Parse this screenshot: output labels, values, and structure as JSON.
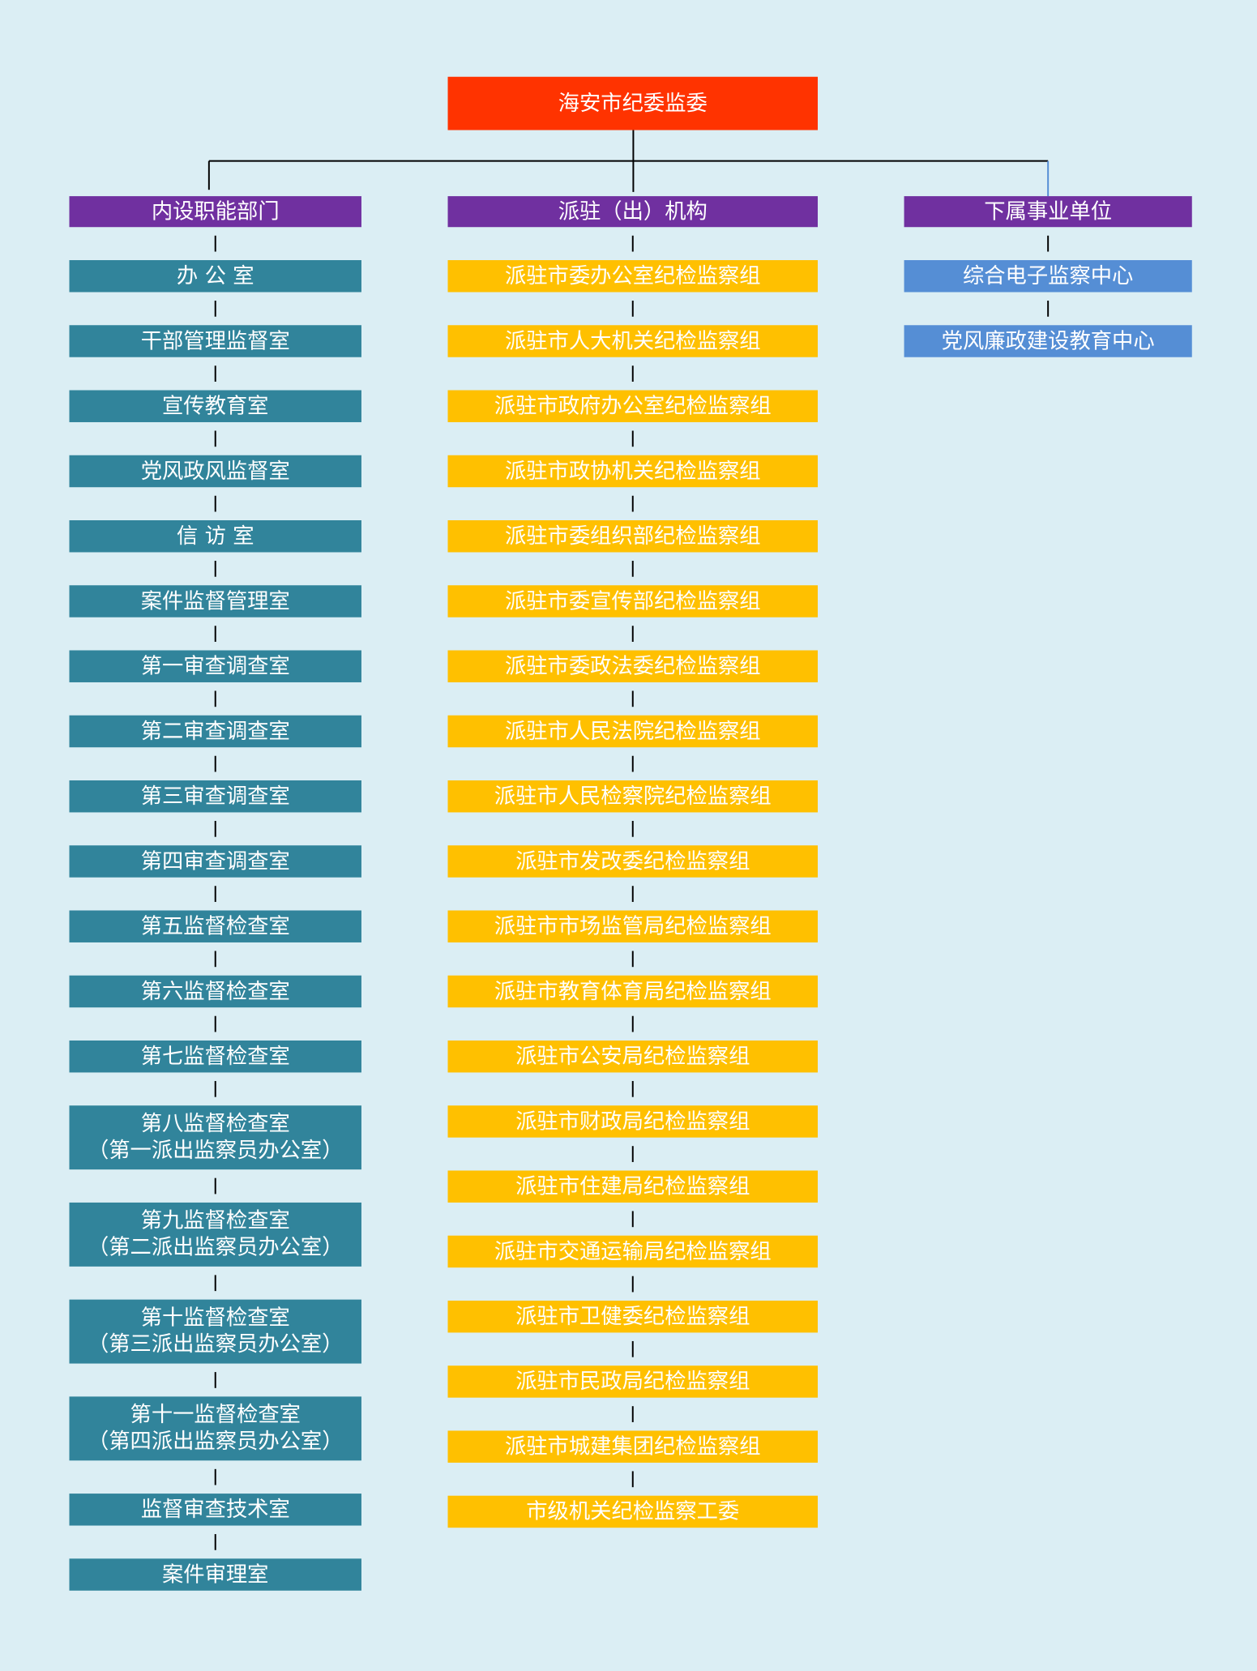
{
  "title": "海安市纪委监委",
  "columns": [
    {
      "title": "内设职能部门",
      "items": [
        [
          "办 公 室"
        ],
        [
          "干部管理监督室"
        ],
        [
          "宣传教育室"
        ],
        [
          "党风政风监督室"
        ],
        [
          "信 访 室"
        ],
        [
          "案件监督管理室"
        ],
        [
          "第一审查调查室"
        ],
        [
          "第二审查调查室"
        ],
        [
          "第三审查调查室"
        ],
        [
          "第四审查调查室"
        ],
        [
          "第五监督检查室"
        ],
        [
          "第六监督检查室"
        ],
        [
          "第七监督检查室"
        ],
        [
          "第八监督检查室",
          "（第一派出监察员办公室）"
        ],
        [
          "第九监督检查室",
          "（第二派出监察员办公室）"
        ],
        [
          "第十监督检查室",
          "（第三派出监察员办公室）"
        ],
        [
          "第十一监督检查室",
          "（第四派出监察员办公室）"
        ],
        [
          "监督审查技术室"
        ],
        [
          "案件审理室"
        ]
      ]
    },
    {
      "title": "派驻（出）机构",
      "items": [
        [
          "派驻市委办公室纪检监察组"
        ],
        [
          "派驻市人大机关纪检监察组"
        ],
        [
          "派驻市政府办公室纪检监察组"
        ],
        [
          "派驻市政协机关纪检监察组"
        ],
        [
          "派驻市委组织部纪检监察组"
        ],
        [
          "派驻市委宣传部纪检监察组"
        ],
        [
          "派驻市委政法委纪检监察组"
        ],
        [
          "派驻市人民法院纪检监察组"
        ],
        [
          "派驻市人民检察院纪检监察组"
        ],
        [
          "派驻市发改委纪检监察组"
        ],
        [
          "派驻市市场监管局纪检监察组"
        ],
        [
          "派驻市教育体育局纪检监察组"
        ],
        [
          "派驻市公安局纪检监察组"
        ],
        [
          "派驻市财政局纪检监察组"
        ],
        [
          "派驻市住建局纪检监察组"
        ],
        [
          "派驻市交通运输局纪检监察组"
        ],
        [
          "派驻市卫健委纪检监察组"
        ],
        [
          "派驻市民政局纪检监察组"
        ],
        [
          "派驻市城建集团纪检监察组"
        ],
        [
          "市级机关纪检监察工委"
        ]
      ]
    },
    {
      "title": "下属事业单位",
      "items": [
        [
          "综合电子监察中心"
        ],
        [
          "党风廉政建设教育中心"
        ]
      ]
    }
  ]
}
